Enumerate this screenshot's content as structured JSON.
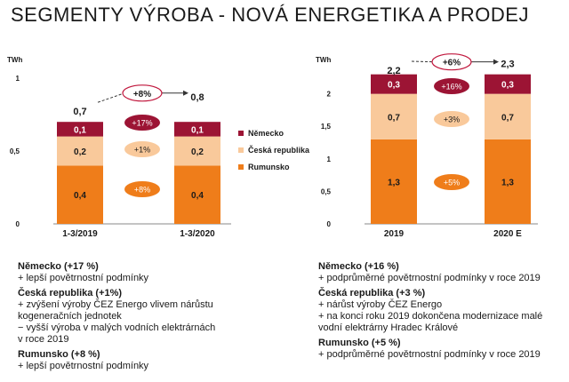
{
  "title": "SEGMENTY VÝROBA - NOVÁ ENERGETIKA A PRODEJ",
  "colors": {
    "nemecko": "#9c1434",
    "ceska": "#f9c99b",
    "rumunsko": "#ef7d1a"
  },
  "chart_data": [
    {
      "type": "bar",
      "stacked": true,
      "unit": "TWh",
      "ylim": [
        0,
        1
      ],
      "yticks": [
        "1",
        "0,5",
        "0"
      ],
      "categories": [
        "1-3/2019",
        "1-3/2020"
      ],
      "series": [
        {
          "name": "Rumunsko",
          "values": [
            0.4,
            0.4
          ],
          "labels": [
            "0,4",
            "0,4"
          ]
        },
        {
          "name": "Česká republika",
          "values": [
            0.2,
            0.2
          ],
          "labels": [
            "0,2",
            "0,2"
          ]
        },
        {
          "name": "Německo",
          "values": [
            0.1,
            0.1
          ],
          "labels": [
            "0,1",
            "0,1"
          ]
        }
      ],
      "totals": [
        "0,7",
        "0,8"
      ],
      "total_values": [
        0.7,
        0.8
      ],
      "growth_total": "+8%",
      "growth": {
        "Německo": "+17%",
        "Česká republika": "+1%",
        "Rumunsko": "+8%"
      },
      "legend": [
        "Německo",
        "Česká republika",
        "Rumunsko"
      ]
    },
    {
      "type": "bar",
      "stacked": true,
      "unit": "TWh",
      "ylim": [
        0,
        2.2
      ],
      "yticks": [
        "2",
        "1,5",
        "1",
        "0,5",
        "0"
      ],
      "categories": [
        "2019",
        "2020 E"
      ],
      "series": [
        {
          "name": "Rumunsko",
          "values": [
            1.3,
            1.3
          ],
          "labels": [
            "1,3",
            "1,3"
          ]
        },
        {
          "name": "Česká republika",
          "values": [
            0.7,
            0.7
          ],
          "labels": [
            "0,7",
            "0,7"
          ]
        },
        {
          "name": "Německo",
          "values": [
            0.3,
            0.3
          ],
          "labels": [
            "0,3",
            "0,3"
          ]
        }
      ],
      "totals": [
        "2,2",
        "2,3"
      ],
      "total_values": [
        2.2,
        2.3
      ],
      "growth_total": "+6%",
      "growth": {
        "Německo": "+16%",
        "Česká republika": "+3%",
        "Rumunsko": "+5%"
      }
    }
  ],
  "notes_left": [
    {
      "heading": "Německo (+17 %)",
      "lines": [
        "+ lepší povětrnostní podmínky"
      ]
    },
    {
      "heading": "Česká republika (+1%)",
      "lines": [
        "+ zvýšení výroby ČEZ Energo vlivem nárůstu",
        "kogeneračních jednotek",
        "− vyšší výroba v malých vodních elektrárnách",
        "v roce 2019"
      ]
    },
    {
      "heading": "Rumunsko (+8 %)",
      "lines": [
        "+ lepší povětrnostní podmínky"
      ]
    }
  ],
  "notes_right": [
    {
      "heading": "Německo (+16 %)",
      "lines": [
        "+ podprůměrné povětrnostní podmínky v roce 2019"
      ]
    },
    {
      "heading": "Česká republika (+3 %)",
      "lines": [
        "+ nárůst výroby ČEZ Energo",
        "+ na konci roku 2019 dokončena modernizace malé",
        "vodní elektrárny Hradec Králové"
      ]
    },
    {
      "heading": "Rumunsko (+5 %)",
      "lines": [
        "+ podprůměrné povětrnostní podmínky v roce 2019"
      ]
    }
  ]
}
